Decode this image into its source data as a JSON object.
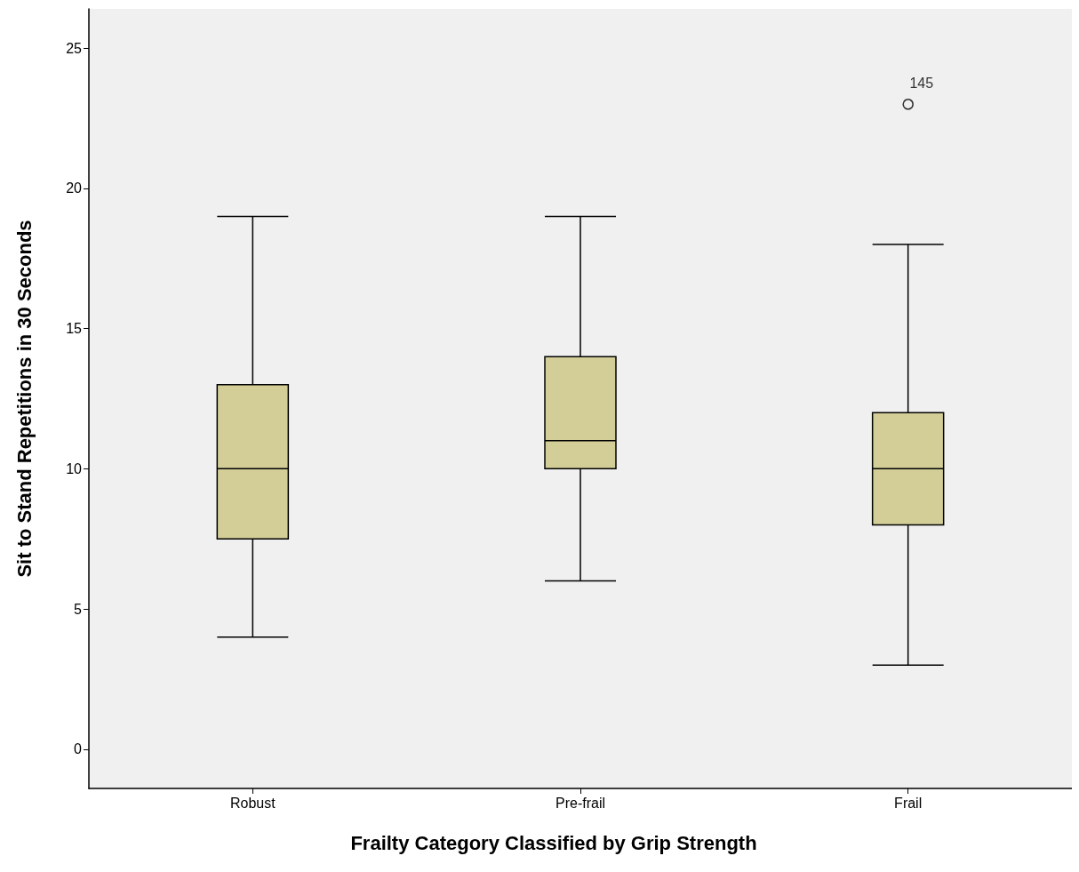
{
  "chart_data": {
    "type": "box",
    "xlabel": "Frailty Category Classified by Grip Strength",
    "ylabel": "Sit to Stand Repetitions in 30 Seconds",
    "categories": [
      "Robust",
      "Pre-frail",
      "Frail"
    ],
    "color": "#d3ce97",
    "boxes": [
      {
        "low": 4,
        "q1": 7.5,
        "median": 10,
        "q3": 13,
        "high": 19
      },
      {
        "low": 6,
        "q1": 10,
        "median": 11,
        "q3": 14,
        "high": 19
      },
      {
        "low": 3,
        "q1": 8,
        "median": 10,
        "q3": 12,
        "high": 18,
        "outliers": [
          23
        ]
      }
    ],
    "annotations": [
      "145"
    ],
    "ylim": [
      -1.4,
      26.4
    ],
    "yticks": [
      0,
      5,
      10,
      15,
      20,
      25
    ],
    "grid": false
  }
}
